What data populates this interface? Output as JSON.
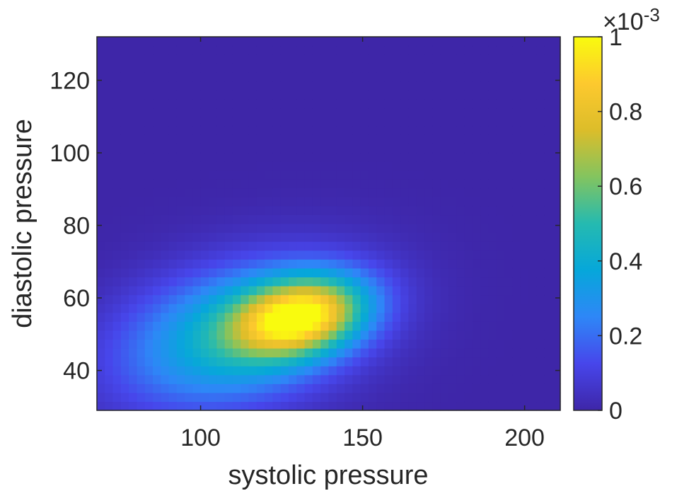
{
  "chart_data": {
    "type": "heatmap",
    "title": "",
    "xlabel": "systolic pressure",
    "ylabel": "diastolic pressure",
    "xlim": [
      68,
      211
    ],
    "ylim": [
      29,
      132
    ],
    "xticks": [
      100,
      150,
      200
    ],
    "yticks": [
      40,
      60,
      80,
      100,
      120
    ],
    "grid": false,
    "colorbar": {
      "min": 0,
      "max": 0.001,
      "multiplier_label": "×10",
      "exponent_label": "-3",
      "ticks": [
        0,
        0.2,
        0.4,
        0.6,
        0.8,
        1
      ],
      "tick_labels": [
        "0",
        "0.2",
        "0.4",
        "0.6",
        "0.8",
        "1"
      ],
      "colormap": "parula"
    },
    "density_peak": {
      "systolic": 131,
      "diastolic": 55,
      "value": 0.00095
    },
    "density_secondary": {
      "systolic": 112,
      "diastolic": 50,
      "value": 0.00045
    },
    "grid_resolution": {
      "x_bins": 58,
      "y_bins": 42
    }
  },
  "colors": {
    "background_min": "#3e26a8",
    "max": "#f9fb0e",
    "axis": "#262626"
  }
}
